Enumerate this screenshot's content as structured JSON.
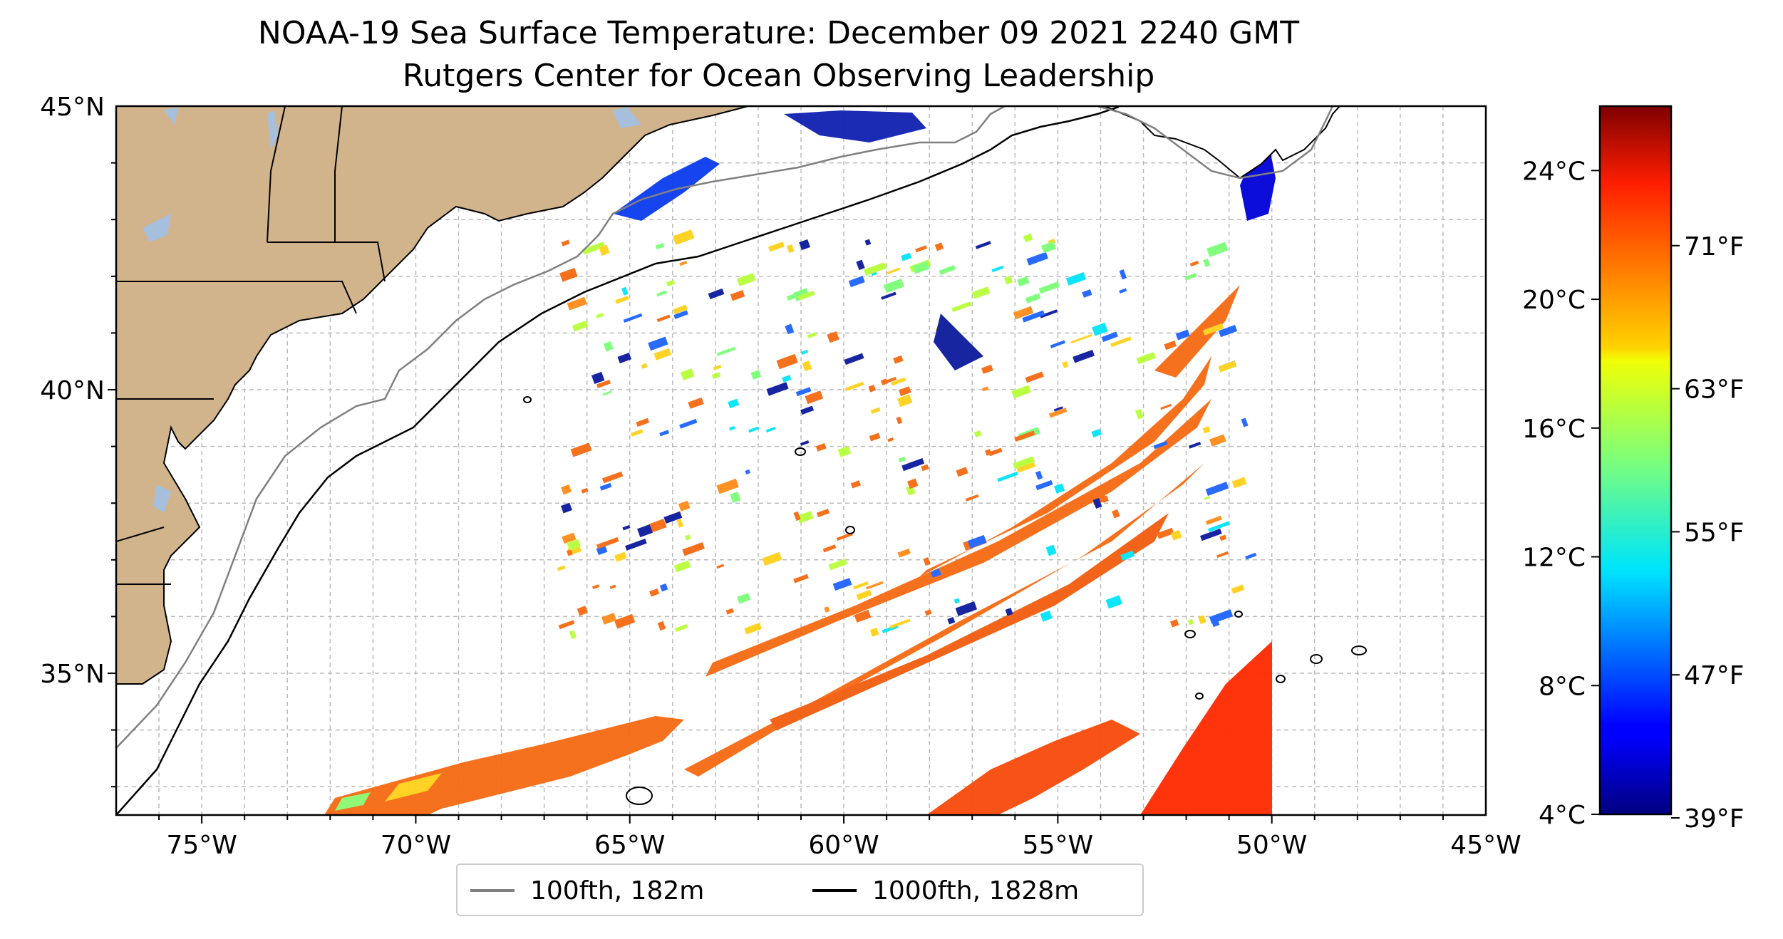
{
  "title": "NOAA-19 Sea Surface Temperature: December 09 2021 2240 GMT",
  "subtitle": "Rutgers Center for Ocean Observing Leadership",
  "map": {
    "lon_range": [
      -77,
      -45
    ],
    "lat_range": [
      32.5,
      45
    ],
    "lat_ticks": [
      {
        "value": 45,
        "label": "45°N"
      },
      {
        "value": 40,
        "label": "40°N"
      },
      {
        "value": 35,
        "label": "35°N"
      }
    ],
    "lon_ticks": [
      {
        "value": -75,
        "label": "75°W"
      },
      {
        "value": -70,
        "label": "70°W"
      },
      {
        "value": -65,
        "label": "65°W"
      },
      {
        "value": -60,
        "label": "60°W"
      },
      {
        "value": -55,
        "label": "55°W"
      },
      {
        "value": -50,
        "label": "50°W"
      },
      {
        "value": -45,
        "label": "45°W"
      }
    ],
    "gridlines": "dashed",
    "land_color": "#d2b48c",
    "water_color": "#a5bfdd"
  },
  "colorbar": {
    "colormap": "jet",
    "celsius_range": [
      4,
      26
    ],
    "celsius_ticks": [
      {
        "value": 4,
        "label": "4°C"
      },
      {
        "value": 8,
        "label": "8°C"
      },
      {
        "value": 12,
        "label": "12°C"
      },
      {
        "value": 16,
        "label": "16°C"
      },
      {
        "value": 20,
        "label": "20°C"
      },
      {
        "value": 24,
        "label": "24°C"
      }
    ],
    "fahrenheit_ticks": [
      {
        "value": 39,
        "label": "39°F"
      },
      {
        "value": 47,
        "label": "47°F"
      },
      {
        "value": 55,
        "label": "55°F"
      },
      {
        "value": 63,
        "label": "63°F"
      },
      {
        "value": 71,
        "label": "71°F"
      }
    ]
  },
  "legend": {
    "items": [
      {
        "label": "100fth, 182m",
        "color": "#808080"
      },
      {
        "label": "1000fth, 1828m",
        "color": "#000000"
      }
    ]
  }
}
